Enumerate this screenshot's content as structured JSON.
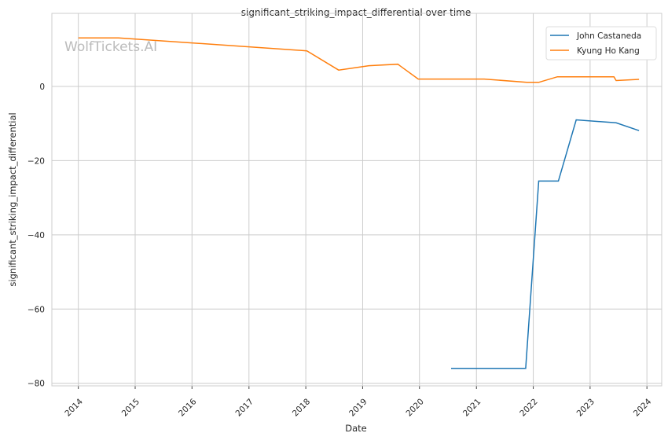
{
  "chart_data": {
    "type": "line",
    "title": "significant_striking_impact_differential over time",
    "xlabel": "Date",
    "ylabel": "significant_striking_impact_differential",
    "watermark": "WolfTickets.AI",
    "xlim": [
      "2013-07-15",
      "2024-04-05"
    ],
    "ylim": [
      -80.7,
      19.7
    ],
    "x_ticks": [
      "2014",
      "2015",
      "2016",
      "2017",
      "2018",
      "2019",
      "2020",
      "2021",
      "2022",
      "2023",
      "2024"
    ],
    "y_ticks": [
      0,
      -20,
      -40,
      -60,
      -80
    ],
    "y_tick_labels": [
      "0",
      "−20",
      "−40",
      "−60",
      "−80"
    ],
    "grid": true,
    "legend_position": "top-right",
    "series": [
      {
        "name": "John Castaneda",
        "color": "#1f77b4",
        "points": [
          [
            "2020-07-22",
            -76.0
          ],
          [
            "2021-11-13",
            -76.0
          ],
          [
            "2022-02-05",
            -25.5
          ],
          [
            "2022-06-11",
            -25.5
          ],
          [
            "2022-10-04",
            -9.0
          ],
          [
            "2023-06-17",
            -9.8
          ],
          [
            "2023-11-11",
            -11.9
          ]
        ]
      },
      {
        "name": "Kyung Ho Kang",
        "color": "#ff7f0e",
        "points": [
          [
            "2014-01-01",
            13.1
          ],
          [
            "2014-09-16",
            13.1
          ],
          [
            "2018-01-08",
            9.6
          ],
          [
            "2018-07-31",
            4.4
          ],
          [
            "2019-02-10",
            5.6
          ],
          [
            "2019-08-15",
            6.0
          ],
          [
            "2019-12-24",
            2.0
          ],
          [
            "2021-02-20",
            2.0
          ],
          [
            "2021-11-20",
            1.1
          ],
          [
            "2022-02-05",
            1.1
          ],
          [
            "2022-06-05",
            2.6
          ],
          [
            "2023-06-03",
            2.6
          ],
          [
            "2023-06-17",
            1.6
          ],
          [
            "2023-11-11",
            1.9
          ]
        ]
      }
    ]
  }
}
